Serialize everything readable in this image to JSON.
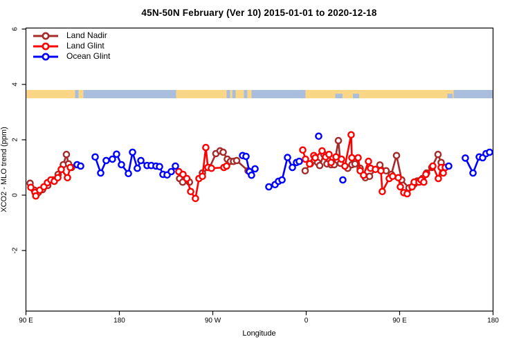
{
  "title": "45N-50N February (Ver 10)   2015-01-01 to 2020-12-18",
  "legend": {
    "items": [
      {
        "label": "Land Nadir",
        "color": "#A52A2A"
      },
      {
        "label": "Land Glint",
        "color": "#FF0000"
      },
      {
        "label": "Ocean Glint",
        "color": "#0000FF"
      }
    ]
  },
  "chart_data": {
    "type": "line",
    "title": "45N-50N February (Ver 10)   2015-01-01 to 2020-12-18",
    "xlabel": "Longitude",
    "ylabel": "XCO2 - MLO trend (ppm)",
    "x_axis_span_deg": 450,
    "x_ticks": [
      {
        "deg": 0,
        "label": "90 E"
      },
      {
        "deg": 90,
        "label": "180"
      },
      {
        "deg": 180,
        "label": "90 W"
      },
      {
        "deg": 270,
        "label": "0"
      },
      {
        "deg": 360,
        "label": "90 E"
      },
      {
        "deg": 450,
        "label": "180"
      }
    ],
    "y_ticks": [
      {
        "value": 6,
        "label": "6"
      },
      {
        "value": 4,
        "label": "4"
      },
      {
        "value": 2,
        "label": "2"
      },
      {
        "value": 0,
        "label": "0"
      },
      {
        "value": -2,
        "label": "-2"
      }
    ],
    "ylim": [
      -4.3,
      6.1
    ],
    "grid": false,
    "legend_position": "top-left",
    "map_strip": {
      "land_color": "#FBD687",
      "ocean_color": "#A9BEDC",
      "y_center_ppm": 3.65,
      "height_ppm": 0.3,
      "segments": [
        {
          "start_deg": 0,
          "end_deg": 47.3,
          "kind": "land"
        },
        {
          "start_deg": 47.3,
          "end_deg": 50.7,
          "kind": "ocean"
        },
        {
          "start_deg": 50.7,
          "end_deg": 55.3,
          "kind": "land"
        },
        {
          "start_deg": 55.3,
          "end_deg": 144.7,
          "kind": "ocean"
        },
        {
          "start_deg": 144.7,
          "end_deg": 193.3,
          "kind": "land"
        },
        {
          "start_deg": 193.3,
          "end_deg": 196.7,
          "kind": "ocean"
        },
        {
          "start_deg": 196.7,
          "end_deg": 198.7,
          "kind": "land"
        },
        {
          "start_deg": 198.7,
          "end_deg": 202,
          "kind": "ocean"
        },
        {
          "start_deg": 202,
          "end_deg": 210,
          "kind": "land"
        },
        {
          "start_deg": 210,
          "end_deg": 213.3,
          "kind": "ocean"
        },
        {
          "start_deg": 213.3,
          "end_deg": 217.3,
          "kind": "land"
        },
        {
          "start_deg": 217.3,
          "end_deg": 269.3,
          "kind": "ocean"
        },
        {
          "start_deg": 269.3,
          "end_deg": 412,
          "kind": "land"
        },
        {
          "start_deg": 412,
          "end_deg": 450,
          "kind": "ocean"
        }
      ],
      "inland_water_specks": [
        {
          "start_deg": 298,
          "end_deg": 305
        },
        {
          "start_deg": 315,
          "end_deg": 321
        },
        {
          "start_deg": 406,
          "end_deg": 411
        }
      ]
    },
    "series": [
      {
        "name": "Land Nadir",
        "color": "#A52A2A",
        "segments": [
          [
            [
              4,
              0.43
            ],
            [
              8,
              0.18
            ],
            [
              12,
              0.1
            ],
            [
              16,
              0.2
            ],
            [
              21,
              0.35
            ],
            [
              26,
              0.55
            ],
            [
              31,
              0.75
            ],
            [
              36,
              1.1
            ],
            [
              39,
              1.47
            ],
            [
              41,
              1.13
            ],
            [
              44,
              1.0
            ]
          ],
          [
            [
              148,
              0.6
            ],
            [
              151,
              0.47
            ],
            [
              157.5,
              0.47
            ]
          ],
          [
            [
              170,
              0.8
            ],
            [
              177,
              1.0
            ],
            [
              183,
              1.5
            ],
            [
              187,
              1.6
            ],
            [
              190,
              1.55
            ],
            [
              194,
              1.3
            ],
            [
              197,
              1.22
            ],
            [
              200,
              1.22
            ],
            [
              203,
              1.25
            ],
            [
              214,
              0.88
            ]
          ],
          [
            [
              269,
              0.88
            ],
            [
              274,
              1.13
            ],
            [
              281,
              1.18
            ],
            [
              283,
              1.07
            ],
            [
              287,
              1.47
            ],
            [
              290,
              1.13
            ],
            [
              294,
              1.1
            ],
            [
              297,
              1.1
            ],
            [
              301,
              1.97
            ],
            [
              303,
              1.15
            ],
            [
              310,
              0.97
            ],
            [
              314,
              1.1
            ],
            [
              317,
              1.13
            ],
            [
              322,
              0.97
            ],
            [
              327,
              0.63
            ],
            [
              331,
              0.68
            ],
            [
              341,
              1.09
            ],
            [
              347,
              0.88
            ],
            [
              352,
              0.75
            ],
            [
              357,
              1.43
            ],
            [
              362,
              0.55
            ],
            [
              369,
              0.26
            ],
            [
              374,
              0.4
            ],
            [
              377,
              0.51
            ],
            [
              382,
              0.6
            ],
            [
              386,
              0.8
            ],
            [
              391,
              1.0
            ],
            [
              397,
              1.47
            ],
            [
              400,
              1.18
            ],
            [
              404,
              1.0
            ]
          ]
        ]
      },
      {
        "name": "Land Glint",
        "color": "#FF0000",
        "segments": [
          [
            [
              4.7,
              0.28
            ],
            [
              8.7,
              0.1
            ],
            [
              9.5,
              -0.03
            ],
            [
              13.3,
              0.18
            ],
            [
              17.3,
              0.3
            ],
            [
              20.7,
              0.45
            ],
            [
              24,
              0.55
            ],
            [
              27.3,
              0.5
            ],
            [
              30.7,
              0.63
            ],
            [
              34,
              0.93
            ],
            [
              40,
              0.63
            ],
            [
              42.7,
              1.0
            ]
          ],
          [
            [
              147.3,
              0.85
            ],
            [
              151.3,
              0.75
            ],
            [
              155,
              0.6
            ],
            [
              158.7,
              0.13
            ],
            [
              163.3,
              -0.12
            ],
            [
              166.7,
              0.6
            ],
            [
              170,
              0.68
            ],
            [
              173.3,
              1.72
            ],
            [
              175.3,
              1.0
            ],
            [
              178.7,
              0.97
            ],
            [
              190.7,
              1.0
            ],
            [
              193.3,
              1.05
            ]
          ],
          [
            [
              266.7,
              1.63
            ],
            [
              269.3,
              1.3
            ],
            [
              273.3,
              1.13
            ],
            [
              277.3,
              1.43
            ],
            [
              278.7,
              1.35
            ],
            [
              285.3,
              1.6
            ],
            [
              288.7,
              1.38
            ],
            [
              292,
              1.47
            ],
            [
              294,
              1.18
            ],
            [
              298.7,
              1.38
            ],
            [
              304,
              1.3
            ],
            [
              307.3,
              1.05
            ],
            [
              313.3,
              2.18
            ],
            [
              314,
              1.35
            ],
            [
              320,
              1.35
            ],
            [
              322,
              0.88
            ],
            [
              325.3,
              0.72
            ],
            [
              330,
              1.22
            ],
            [
              332,
              0.97
            ],
            [
              336.7,
              0.93
            ],
            [
              342,
              0.88
            ],
            [
              343.3,
              0.13
            ],
            [
              350,
              0.6
            ],
            [
              353.3,
              0.68
            ],
            [
              358.7,
              0.63
            ],
            [
              360.7,
              0.3
            ],
            [
              364,
              0.09
            ],
            [
              367.3,
              0.05
            ],
            [
              372,
              0.3
            ],
            [
              374,
              0.47
            ],
            [
              378.7,
              0.47
            ],
            [
              380.7,
              0.55
            ],
            [
              383.3,
              0.47
            ],
            [
              385.3,
              0.75
            ],
            [
              392,
              1.05
            ],
            [
              397.3,
              0.6
            ],
            [
              400,
              1.0
            ],
            [
              402,
              0.8
            ],
            [
              404,
              1.0
            ]
          ]
        ]
      },
      {
        "name": "Ocean Glint",
        "color": "#0000FF",
        "segments": [
          [
            [
              49.3,
              1.1
            ],
            [
              52.7,
              1.05
            ]
          ],
          [
            [
              66.7,
              1.38
            ],
            [
              72,
              0.8
            ],
            [
              77.3,
              1.25
            ],
            [
              83.3,
              1.3
            ],
            [
              87.3,
              1.48
            ],
            [
              92,
              1.1
            ],
            [
              98.7,
              0.78
            ],
            [
              102.7,
              1.55
            ],
            [
              107.3,
              0.97
            ],
            [
              110.7,
              1.25
            ],
            [
              116.7,
              1.07
            ],
            [
              120.7,
              1.07
            ],
            [
              125.3,
              1.05
            ],
            [
              128.7,
              1.03
            ],
            [
              132,
              0.75
            ],
            [
              136,
              0.73
            ],
            [
              140,
              0.85
            ],
            [
              144,
              1.05
            ]
          ],
          [
            [
              208.7,
              1.43
            ],
            [
              212,
              1.4
            ],
            [
              215.3,
              0.85
            ],
            [
              217.3,
              0.72
            ],
            [
              220.7,
              0.95
            ]
          ],
          [
            [
              234,
              0.3
            ],
            [
              240,
              0.38
            ],
            [
              243.3,
              0.5
            ],
            [
              246.7,
              0.55
            ],
            [
              252,
              1.36
            ],
            [
              256.7,
              1.0
            ],
            [
              260.7,
              1.18
            ],
            [
              263.3,
              1.22
            ]
          ],
          [
            [
              282,
              2.13
            ]
          ],
          [
            [
              305.3,
              0.55
            ]
          ],
          [
            [
              407.3,
              1.05
            ]
          ],
          [
            [
              423.3,
              1.34
            ],
            [
              430.7,
              0.8
            ],
            [
              436.7,
              1.38
            ],
            [
              440,
              1.35
            ],
            [
              443.3,
              1.5
            ],
            [
              446.7,
              1.55
            ]
          ]
        ]
      }
    ]
  }
}
